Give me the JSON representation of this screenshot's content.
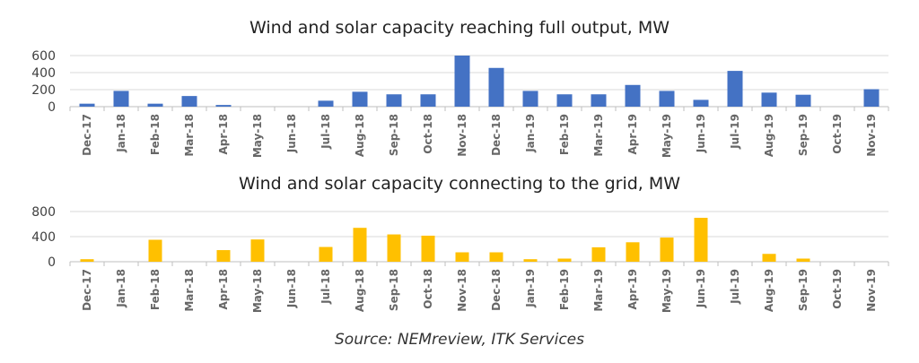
{
  "colors": {
    "blue_bars": "#4472C4",
    "yellow_bars": "#FFC000",
    "gridline": "#D9D9D9",
    "axis_line": "#BFBFBF"
  },
  "source_text": "Source: NEMreview, ITK Services",
  "chart_data": [
    {
      "type": "bar",
      "title": "Wind and solar capacity reaching full output, MW",
      "categories": [
        "Dec-17",
        "Jan-18",
        "Feb-18",
        "Mar-18",
        "Apr-18",
        "May-18",
        "Jun-18",
        "Jul-18",
        "Aug-18",
        "Sep-18",
        "Oct-18",
        "Nov-18",
        "Dec-18",
        "Jan-19",
        "Feb-19",
        "Mar-19",
        "Apr-19",
        "May-19",
        "Jun-19",
        "Jul-19",
        "Aug-19",
        "Sep-19",
        "Oct-19",
        "Nov-19"
      ],
      "values": [
        35,
        185,
        35,
        125,
        20,
        0,
        0,
        70,
        175,
        145,
        145,
        600,
        455,
        185,
        145,
        145,
        255,
        185,
        80,
        420,
        165,
        140,
        0,
        205
      ],
      "ylim": [
        0,
        600
      ],
      "yticks": [
        "0",
        "200",
        "400",
        "600"
      ],
      "grid": true,
      "color": "#4472C4"
    },
    {
      "type": "bar",
      "title": "Wind and solar capacity connecting to the grid, MW",
      "categories": [
        "Dec-17",
        "Jan-18",
        "Feb-18",
        "Mar-18",
        "Apr-18",
        "May-18",
        "Jun-18",
        "Jul-18",
        "Aug-18",
        "Sep-18",
        "Oct-18",
        "Nov-18",
        "Dec-18",
        "Jan-19",
        "Feb-19",
        "Mar-19",
        "Apr-19",
        "May-19",
        "Jun-19",
        "Jul-19",
        "Aug-19",
        "Sep-19",
        "Oct-19",
        "Nov-19"
      ],
      "values": [
        40,
        0,
        350,
        0,
        185,
        355,
        0,
        235,
        540,
        435,
        415,
        150,
        150,
        40,
        50,
        230,
        310,
        385,
        700,
        0,
        125,
        50,
        0,
        0
      ],
      "ylim": [
        0,
        800
      ],
      "yticks": [
        "0",
        "400",
        "800"
      ],
      "grid": true,
      "color": "#FFC000"
    }
  ]
}
